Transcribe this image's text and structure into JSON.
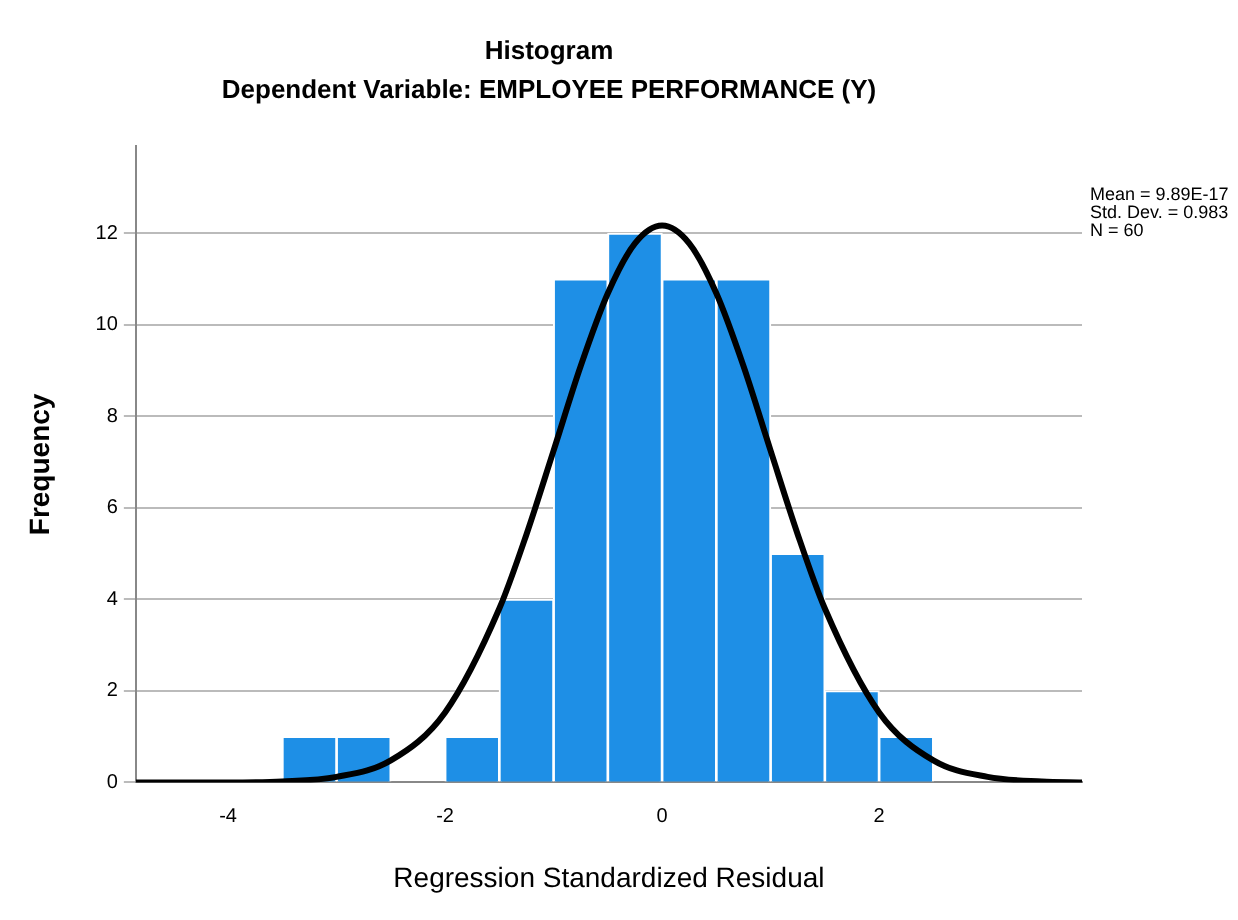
{
  "chart_data": {
    "type": "histogram",
    "title": "Histogram",
    "subtitle": "Dependent Variable: EMPLOYEE PERFORMANCE (Y)",
    "xlabel": "Regression Standardized Residual",
    "ylabel": "Frequency",
    "bins": [
      -3.5,
      -3,
      -2.5,
      -2,
      -1.5,
      -1,
      -0.5,
      0,
      0.5,
      1,
      1.5,
      2,
      2.5
    ],
    "values": [
      1,
      1,
      0,
      1,
      4,
      11,
      12,
      11,
      11,
      5,
      2,
      1
    ],
    "color": "#1e8fe6",
    "series": [
      {
        "type": "line",
        "color": "#000000",
        "x": [
          -4.85,
          -4,
          -3.5,
          -3,
          -2.5,
          -2,
          -1.5,
          -1.25,
          -1,
          -0.75,
          -0.5,
          -0.25,
          0,
          0.25,
          0.5,
          0.75,
          1,
          1.25,
          1.5,
          2,
          2.5,
          3,
          3.5,
          3.87
        ],
        "values": [
          0,
          0,
          0.02,
          0.12,
          0.48,
          1.53,
          3.8,
          5.42,
          7.25,
          9.1,
          10.69,
          11.78,
          12.17,
          11.78,
          10.69,
          9.1,
          7.25,
          5.42,
          3.8,
          1.53,
          0.48,
          0.12,
          0.02,
          0
        ]
      }
    ],
    "annotations": [
      "Mean = 9.89E-17",
      "Std. Dev. = 0.983",
      "N = 60"
    ],
    "xlim": [
      -4.85,
      3.87
    ],
    "xticks": [
      -4,
      -2,
      0,
      2
    ],
    "ylim": [
      0,
      13.9
    ],
    "yticks": [
      0,
      2,
      4,
      6,
      8,
      10,
      12
    ],
    "grid": "y",
    "legend": false,
    "marker": "none",
    "line_style": "solid"
  }
}
